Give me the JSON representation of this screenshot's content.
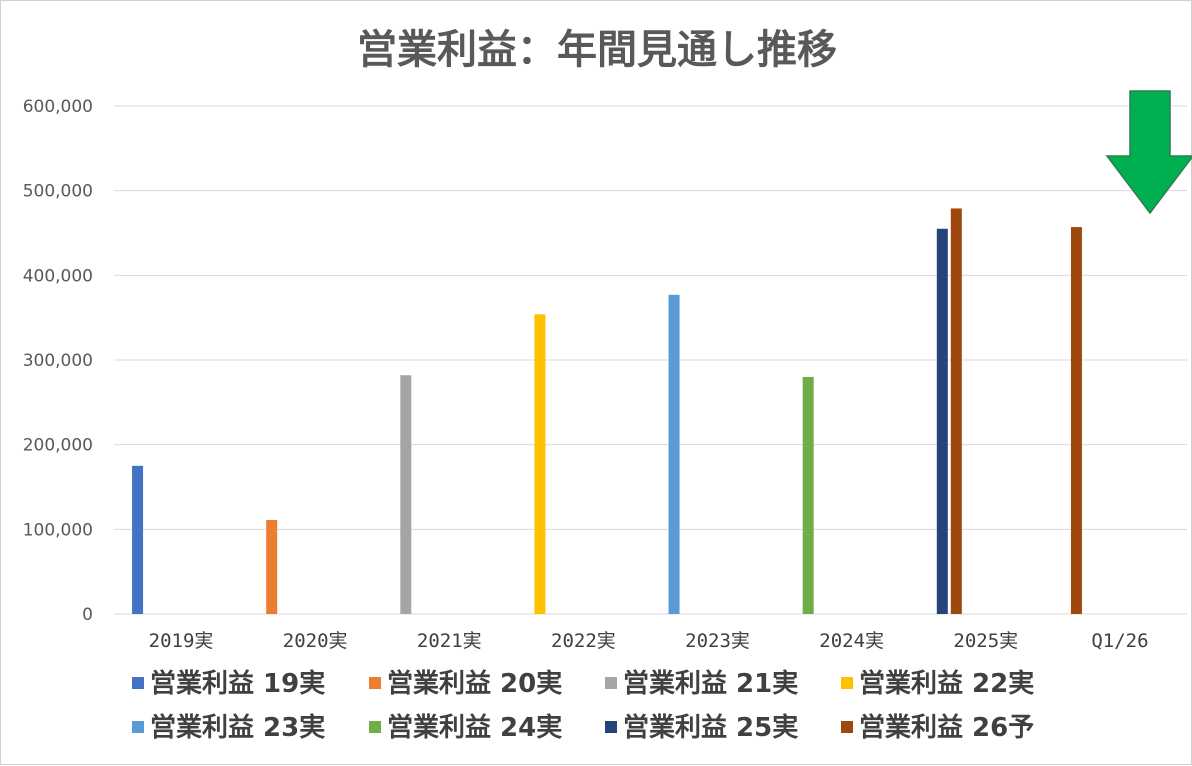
{
  "chart_data": {
    "type": "bar",
    "title": "営業利益：年間見通し推移",
    "xlabel": "",
    "ylabel": "",
    "categories": [
      "2019実",
      "2020実",
      "2021実",
      "2022実",
      "2023実",
      "2024実",
      "2025実",
      "Q1/26"
    ],
    "ylim": [
      0,
      600000
    ],
    "yticks": [
      "0",
      "100,000",
      "200,000",
      "300,000",
      "400,000",
      "500,000",
      "600,000"
    ],
    "grid": true,
    "legend_position": "bottom",
    "series": [
      {
        "name": "営業利益 19実",
        "color": "#4472c4",
        "values": [
          175000,
          null,
          null,
          null,
          null,
          null,
          null,
          null
        ]
      },
      {
        "name": "営業利益 20実",
        "color": "#ed7d31",
        "values": [
          null,
          111000,
          null,
          null,
          null,
          null,
          null,
          null
        ]
      },
      {
        "name": "営業利益 21実",
        "color": "#a5a5a5",
        "values": [
          null,
          null,
          282000,
          null,
          null,
          null,
          null,
          null
        ]
      },
      {
        "name": "営業利益 22実",
        "color": "#ffc000",
        "values": [
          null,
          null,
          null,
          354000,
          null,
          null,
          null,
          null
        ]
      },
      {
        "name": "営業利益 23実",
        "color": "#5b9bd5",
        "values": [
          null,
          null,
          null,
          null,
          377000,
          null,
          null,
          null
        ]
      },
      {
        "name": "営業利益 24実",
        "color": "#70ad47",
        "values": [
          null,
          null,
          null,
          null,
          null,
          280000,
          null,
          null
        ]
      },
      {
        "name": "営業利益 25実",
        "color": "#264478",
        "values": [
          null,
          null,
          null,
          null,
          null,
          null,
          455000,
          null
        ]
      },
      {
        "name": "営業利益 26予",
        "color": "#9e480e",
        "values": [
          null,
          null,
          null,
          null,
          null,
          null,
          479000,
          457000
        ]
      }
    ],
    "annotation": {
      "type": "down-arrow",
      "color": "#00b050",
      "points_to": "Q1/26"
    }
  }
}
